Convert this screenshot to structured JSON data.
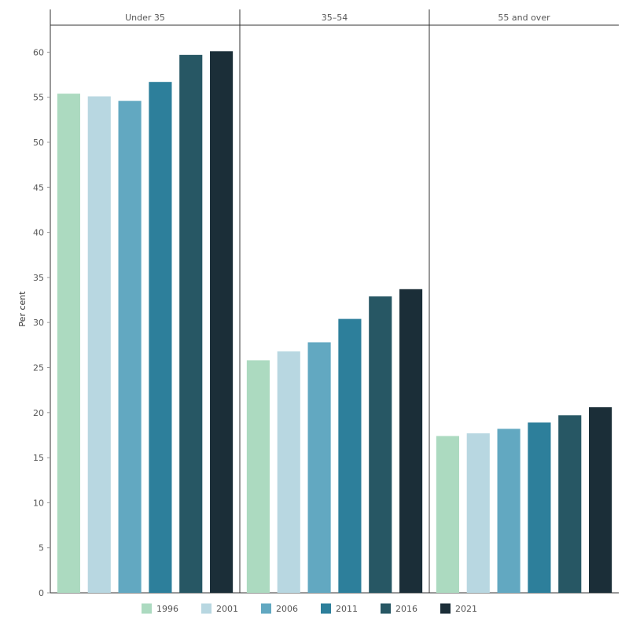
{
  "chart_data": {
    "type": "bar",
    "ylabel": "Per cent",
    "xlabel": "",
    "ylim": [
      0,
      63
    ],
    "yticks": [
      0,
      5,
      10,
      15,
      20,
      25,
      30,
      35,
      40,
      45,
      50,
      55,
      60
    ],
    "grid": false,
    "legend_position": "bottom",
    "categories": [
      "Under 35",
      "35–54",
      "55 and over"
    ],
    "series": [
      {
        "name": "1996",
        "color": "#acdac0",
        "values": [
          55.4,
          25.8,
          17.4
        ]
      },
      {
        "name": "2001",
        "color": "#b8d7e1",
        "values": [
          55.1,
          26.8,
          17.7
        ]
      },
      {
        "name": "2006",
        "color": "#62a8c1",
        "values": [
          54.6,
          27.8,
          18.2
        ]
      },
      {
        "name": "2011",
        "color": "#2d7f9b",
        "values": [
          56.7,
          30.4,
          18.9
        ]
      },
      {
        "name": "2016",
        "color": "#275764",
        "values": [
          59.7,
          32.9,
          19.7
        ]
      },
      {
        "name": "2021",
        "color": "#1b2e38",
        "values": [
          60.1,
          33.7,
          20.6
        ]
      }
    ]
  }
}
